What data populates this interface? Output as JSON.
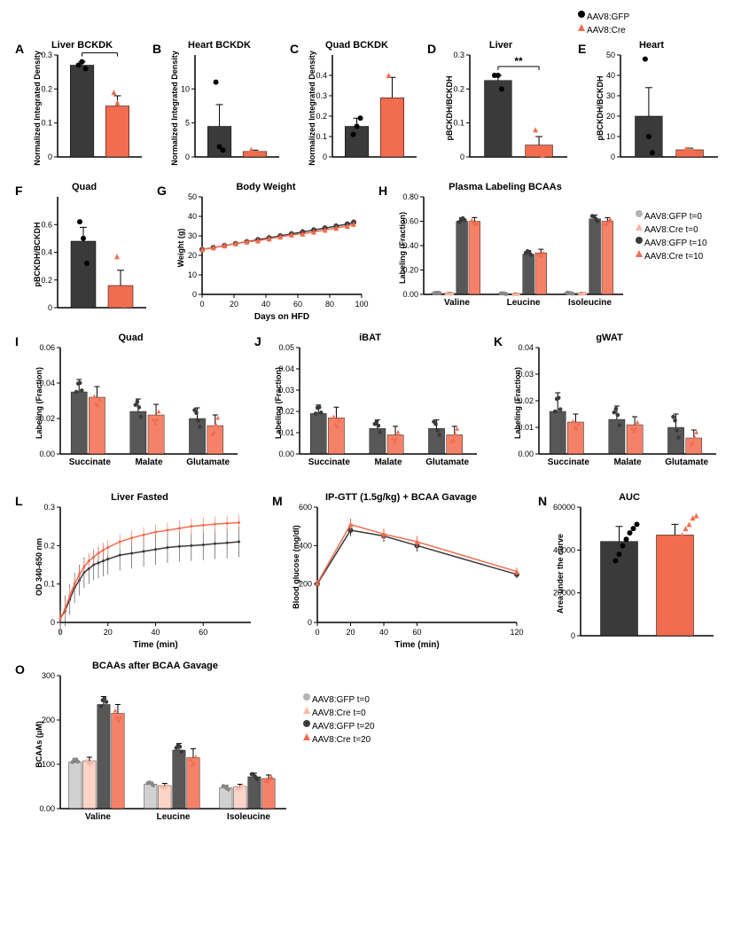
{
  "colors": {
    "gfp": "#3a3a3a",
    "cre": "#f26c4f",
    "gfp_light": "#b3b3b3",
    "cre_light": "#f9b8a4",
    "axis": "#000000",
    "bg": "#ffffff"
  },
  "global_legend": {
    "items": [
      {
        "symbol": "circle",
        "color": "#000000",
        "label": "AAV8:GFP"
      },
      {
        "symbol": "triangle",
        "color": "#f26c4f",
        "label": "AAV8:Cre"
      }
    ]
  },
  "panelA": {
    "label": "A",
    "title": "Liver BCKDK",
    "sig": "*",
    "ylabel": "Normalized Integrated Density",
    "ylim": [
      0,
      0.3
    ],
    "yticks": [
      0.0,
      0.1,
      0.2,
      0.3
    ],
    "bars": [
      {
        "group": "GFP",
        "value": 0.27,
        "err": 0.01,
        "color": "#3a3a3a",
        "marker": "circle",
        "points": [
          0.27,
          0.28,
          0.26
        ]
      },
      {
        "group": "Cre",
        "value": 0.15,
        "err": 0.03,
        "color": "#f26c4f",
        "marker": "triangle",
        "points": [
          0.19,
          0.16,
          0.1
        ]
      }
    ]
  },
  "panelB": {
    "label": "B",
    "title": "Heart BCKDK",
    "ylabel": "Normalized Integrated Density",
    "ylim": [
      0,
      15
    ],
    "yticks": [
      0,
      5,
      10
    ],
    "bars": [
      {
        "group": "GFP",
        "value": 4.5,
        "err": 3.2,
        "color": "#3a3a3a",
        "marker": "circle",
        "points": [
          11,
          1.5,
          1
        ]
      },
      {
        "group": "Cre",
        "value": 0.8,
        "err": 0.2,
        "color": "#f26c4f",
        "marker": "triangle",
        "points": [
          1.1,
          0.6,
          0.7
        ]
      }
    ]
  },
  "panelC": {
    "label": "C",
    "title": "Quad BCKDK",
    "ylabel": "Normalized Integrated Density",
    "ylim": [
      0,
      0.5
    ],
    "yticks": [
      0.0,
      0.1,
      0.2,
      0.3,
      0.4
    ],
    "bars": [
      {
        "group": "GFP",
        "value": 0.15,
        "err": 0.04,
        "color": "#3a3a3a",
        "marker": "circle",
        "points": [
          0.11,
          0.15,
          0.19
        ]
      },
      {
        "group": "Cre",
        "value": 0.29,
        "err": 0.1,
        "color": "#f26c4f",
        "marker": "triangle",
        "points": [
          0.4,
          0.27,
          0.2
        ]
      }
    ]
  },
  "panelD": {
    "label": "D",
    "title": "Liver",
    "sig": "**",
    "ylabel": "pBCKDH/BCKDH",
    "ylim": [
      0,
      0.3
    ],
    "yticks": [
      0.0,
      0.1,
      0.2,
      0.3
    ],
    "bars": [
      {
        "group": "GFP",
        "value": 0.225,
        "err": 0.015,
        "color": "#3a3a3a",
        "marker": "circle",
        "points": [
          0.24,
          0.24,
          0.2
        ]
      },
      {
        "group": "Cre",
        "value": 0.035,
        "err": 0.025,
        "color": "#f26c4f",
        "marker": "triangle",
        "points": [
          0.08,
          0.02,
          0.005
        ]
      }
    ]
  },
  "panelE": {
    "label": "E",
    "title": "Heart",
    "ylabel": "pBCKDH/BCKDH",
    "ylim": [
      0,
      50
    ],
    "yticks": [
      0,
      10,
      20,
      30,
      40,
      50
    ],
    "bars": [
      {
        "group": "GFP",
        "value": 20,
        "err": 14,
        "color": "#3a3a3a",
        "marker": "circle",
        "points": [
          48,
          10,
          2
        ]
      },
      {
        "group": "Cre",
        "value": 3.5,
        "err": 0.8,
        "color": "#f26c4f",
        "marker": "triangle",
        "points": [
          4,
          3.5,
          3
        ]
      }
    ]
  },
  "panelF": {
    "label": "F",
    "title": "Quad",
    "ylabel": "pBCKDH/BCKDH",
    "ylim": [
      0,
      0.8
    ],
    "yticks": [
      0.0,
      0.2,
      0.4,
      0.6
    ],
    "bars": [
      {
        "group": "GFP",
        "value": 0.48,
        "err": 0.1,
        "color": "#3a3a3a",
        "marker": "circle",
        "points": [
          0.62,
          0.5,
          0.32
        ]
      },
      {
        "group": "Cre",
        "value": 0.16,
        "err": 0.11,
        "color": "#f26c4f",
        "marker": "triangle",
        "points": [
          0.37,
          0.1,
          0.02
        ]
      }
    ]
  },
  "panelG": {
    "label": "G",
    "title": "Body Weight",
    "xlabel": "Days on HFD",
    "ylabel": "Weight (g)",
    "xlim": [
      0,
      100
    ],
    "ylim": [
      0,
      50
    ],
    "xticks": [
      0,
      20,
      40,
      60,
      80,
      100
    ],
    "yticks": [
      0,
      10,
      20,
      30,
      40,
      50
    ],
    "series": [
      {
        "name": "GFP",
        "color": "#3a3a3a",
        "marker": "circle",
        "x": [
          0,
          7,
          14,
          21,
          28,
          35,
          42,
          49,
          56,
          63,
          70,
          77,
          84,
          91,
          95
        ],
        "y": [
          23,
          24,
          25,
          26,
          27,
          28,
          29,
          30,
          31,
          32,
          33,
          34,
          35,
          36,
          37
        ],
        "err": 1.5
      },
      {
        "name": "Cre",
        "color": "#f26c4f",
        "marker": "triangle",
        "x": [
          0,
          7,
          14,
          21,
          28,
          35,
          42,
          49,
          56,
          63,
          70,
          77,
          84,
          91,
          95
        ],
        "y": [
          23,
          24,
          25,
          26,
          27,
          27.5,
          28.5,
          29.5,
          30.5,
          31,
          32,
          33,
          34,
          35,
          36
        ],
        "err": 1.5
      }
    ]
  },
  "panelH": {
    "label": "H",
    "title": "Plasma Labeling BCAAs",
    "ylabel": "Labeling (Fraction)",
    "ylim": [
      0,
      0.8
    ],
    "yticks": [
      0.0,
      0.2,
      0.4,
      0.6,
      0.8
    ],
    "legend": [
      {
        "color": "#b3b3b3",
        "marker": "circle",
        "label": "AAV8:GFP t=0"
      },
      {
        "color": "#f9b8a4",
        "marker": "triangle",
        "label": "AAV8:Cre t=0"
      },
      {
        "color": "#3a3a3a",
        "marker": "circle",
        "label": "AAV8:GFP t=10"
      },
      {
        "color": "#f26c4f",
        "marker": "triangle",
        "label": "AAV8:Cre t=10"
      }
    ],
    "categories": [
      "Valine",
      "Leucine",
      "Isoleucine"
    ],
    "groups": [
      {
        "name": "GFP_t0",
        "color": "#b3b3b3",
        "values": [
          0.01,
          0.005,
          0.01
        ],
        "err": [
          0.005,
          0.005,
          0.005
        ]
      },
      {
        "name": "Cre_t0",
        "color": "#f9b8a4",
        "values": [
          0.01,
          0.005,
          0.01
        ],
        "err": [
          0.005,
          0.005,
          0.005
        ]
      },
      {
        "name": "GFP_t10",
        "color": "#3a3a3a",
        "values": [
          0.6,
          0.33,
          0.62
        ],
        "err": [
          0.03,
          0.03,
          0.03
        ]
      },
      {
        "name": "Cre_t10",
        "color": "#f26c4f",
        "values": [
          0.6,
          0.34,
          0.6
        ],
        "err": [
          0.03,
          0.03,
          0.03
        ]
      }
    ]
  },
  "panelI": {
    "label": "I",
    "title": "Quad",
    "ylabel": "Labeling (Fraction)",
    "ylim": [
      0,
      0.06
    ],
    "yticks": [
      0.0,
      0.02,
      0.04,
      0.06
    ],
    "categories": [
      "Succinate",
      "Malate",
      "Glutamate"
    ],
    "groups": [
      {
        "name": "GFP",
        "color": "#3a3a3a",
        "values": [
          0.035,
          0.024,
          0.02
        ],
        "err": [
          0.007,
          0.007,
          0.006
        ]
      },
      {
        "name": "Cre",
        "color": "#f26c4f",
        "values": [
          0.032,
          0.022,
          0.016
        ],
        "err": [
          0.006,
          0.006,
          0.006
        ]
      }
    ]
  },
  "panelJ": {
    "label": "J",
    "title": "iBAT",
    "ylabel": "Labeling (Fraction)",
    "ylim": [
      0,
      0.05
    ],
    "yticks": [
      0.0,
      0.01,
      0.02,
      0.03,
      0.04,
      0.05
    ],
    "categories": [
      "Succinate",
      "Malate",
      "Glutamate"
    ],
    "groups": [
      {
        "name": "GFP",
        "color": "#3a3a3a",
        "values": [
          0.019,
          0.012,
          0.012
        ],
        "err": [
          0.004,
          0.004,
          0.004
        ]
      },
      {
        "name": "Cre",
        "color": "#f26c4f",
        "values": [
          0.017,
          0.009,
          0.009
        ],
        "err": [
          0.005,
          0.004,
          0.004
        ]
      }
    ]
  },
  "panelK": {
    "label": "K",
    "title": "gWAT",
    "ylabel": "Labeling (Fraction)",
    "ylim": [
      0,
      0.04
    ],
    "yticks": [
      0.0,
      0.01,
      0.02,
      0.03,
      0.04
    ],
    "categories": [
      "Succinate",
      "Malate",
      "Glutamate"
    ],
    "groups": [
      {
        "name": "GFP",
        "color": "#3a3a3a",
        "values": [
          0.016,
          0.013,
          0.01
        ],
        "err": [
          0.007,
          0.005,
          0.005
        ]
      },
      {
        "name": "Cre",
        "color": "#f26c4f",
        "values": [
          0.012,
          0.011,
          0.006
        ],
        "err": [
          0.003,
          0.003,
          0.003
        ]
      }
    ]
  },
  "panelL": {
    "label": "L",
    "title": "Liver Fasted",
    "xlabel": "Time (min)",
    "ylabel": "OD 340-650 nm",
    "xlim": [
      0,
      80
    ],
    "ylim": [
      0,
      0.3
    ],
    "xticks": [
      0,
      20,
      40,
      60
    ],
    "yticks": [
      0.0,
      0.1,
      0.2,
      0.3
    ],
    "series": [
      {
        "name": "GFP",
        "color": "#3a3a3a",
        "err": 0.04,
        "x": [
          0,
          2,
          4,
          6,
          8,
          10,
          12,
          14,
          16,
          18,
          20,
          25,
          30,
          35,
          40,
          45,
          50,
          55,
          60,
          65,
          70,
          75
        ],
        "y": [
          0.01,
          0.03,
          0.06,
          0.09,
          0.11,
          0.13,
          0.14,
          0.15,
          0.155,
          0.16,
          0.165,
          0.175,
          0.18,
          0.185,
          0.19,
          0.195,
          0.198,
          0.2,
          0.202,
          0.205,
          0.207,
          0.21
        ]
      },
      {
        "name": "Cre",
        "color": "#f26c4f",
        "err": 0.02,
        "x": [
          0,
          2,
          4,
          6,
          8,
          10,
          12,
          14,
          16,
          18,
          20,
          25,
          30,
          35,
          40,
          45,
          50,
          55,
          60,
          65,
          70,
          75
        ],
        "y": [
          0.01,
          0.035,
          0.07,
          0.1,
          0.125,
          0.145,
          0.16,
          0.17,
          0.18,
          0.188,
          0.195,
          0.21,
          0.22,
          0.228,
          0.235,
          0.24,
          0.245,
          0.25,
          0.253,
          0.256,
          0.258,
          0.26
        ]
      }
    ]
  },
  "panelM": {
    "label": "M",
    "title": "IP-GTT (1.5g/kg) + BCAA Gavage",
    "xlabel": "Time (min)",
    "ylabel": "Blood glucose (mg/dl)",
    "xlim": [
      0,
      120
    ],
    "ylim": [
      0,
      600
    ],
    "xticks": [
      0,
      20,
      40,
      60,
      120
    ],
    "yticks": [
      0,
      200,
      400,
      600
    ],
    "series": [
      {
        "name": "GFP",
        "color": "#3a3a3a",
        "marker": "circle",
        "x": [
          0,
          20,
          40,
          60,
          120
        ],
        "y": [
          200,
          480,
          450,
          400,
          250
        ],
        "err": [
          15,
          30,
          30,
          30,
          20
        ]
      },
      {
        "name": "Cre",
        "color": "#f26c4f",
        "marker": "triangle",
        "x": [
          0,
          20,
          40,
          60,
          120
        ],
        "y": [
          205,
          510,
          460,
          420,
          265
        ],
        "err": [
          15,
          30,
          30,
          30,
          20
        ]
      }
    ]
  },
  "panelN": {
    "label": "N",
    "title": "AUC",
    "ylabel": "Area under the curve",
    "ylim": [
      0,
      60000
    ],
    "yticks": [
      0,
      20000,
      40000,
      60000
    ],
    "bars": [
      {
        "group": "GFP",
        "value": 44000,
        "err": 7000,
        "color": "#3a3a3a",
        "marker": "circle",
        "points": [
          35000,
          38000,
          42000,
          45000,
          48000,
          50000,
          52000
        ]
      },
      {
        "group": "Cre",
        "value": 47000,
        "err": 5000,
        "color": "#f26c4f",
        "marker": "triangle",
        "points": [
          38000,
          40000,
          45000,
          47000,
          50000,
          52000,
          55000,
          56000
        ]
      }
    ]
  },
  "panelO": {
    "label": "O",
    "title": "BCAAs after BCAA Gavage",
    "ylabel": "BCAAs (μM)",
    "ylim": [
      0,
      300
    ],
    "yticks": [
      0,
      100,
      200,
      300
    ],
    "legend": [
      {
        "color": "#b3b3b3",
        "marker": "circle",
        "label": "AAV8:GFP t=0"
      },
      {
        "color": "#f9b8a4",
        "marker": "triangle",
        "label": "AAV8:Cre t=0"
      },
      {
        "color": "#3a3a3a",
        "marker": "circle",
        "label": "AAV8:GFP t=20"
      },
      {
        "color": "#f26c4f",
        "marker": "triangle",
        "label": "AAV8:Cre t=20"
      }
    ],
    "categories": [
      "Valine",
      "Leucine",
      "Isoleucine"
    ],
    "groups": [
      {
        "name": "GFP_t0",
        "color": "#b3b3b3",
        "values": [
          105,
          55,
          47
        ],
        "err": [
          8,
          5,
          5
        ]
      },
      {
        "name": "Cre_t0",
        "color": "#f9b8a4",
        "values": [
          108,
          52,
          50
        ],
        "err": [
          8,
          5,
          5
        ]
      },
      {
        "name": "GFP_t20",
        "color": "#3a3a3a",
        "values": [
          235,
          132,
          72
        ],
        "err": [
          18,
          15,
          8
        ]
      },
      {
        "name": "Cre_t20",
        "color": "#f26c4f",
        "values": [
          215,
          115,
          68
        ],
        "err": [
          20,
          20,
          8
        ]
      }
    ]
  }
}
